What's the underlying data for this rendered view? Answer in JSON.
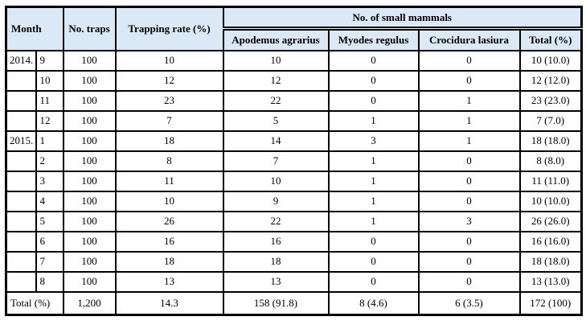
{
  "table": {
    "header": {
      "month": "Month",
      "no_traps": "No. traps",
      "trapping_rate": "Trapping rate (%)",
      "small_mammals_group": "No. of small mammals",
      "species": [
        "Apodemus agrarius",
        "Myodes regulus",
        "Crocidura lasiura",
        "Total (%)"
      ]
    },
    "rows": [
      {
        "year": "2014.",
        "month": "9",
        "traps": "100",
        "rate": "10",
        "apodemus": "10",
        "myodes": "0",
        "crocidura": "0",
        "total": "10 (10.0)"
      },
      {
        "year": "",
        "month": "10",
        "traps": "100",
        "rate": "12",
        "apodemus": "12",
        "myodes": "0",
        "crocidura": "0",
        "total": "12 (12.0)"
      },
      {
        "year": "",
        "month": "11",
        "traps": "100",
        "rate": "23",
        "apodemus": "22",
        "myodes": "0",
        "crocidura": "1",
        "total": "23 (23.0)"
      },
      {
        "year": "",
        "month": "12",
        "traps": "100",
        "rate": "7",
        "apodemus": "5",
        "myodes": "1",
        "crocidura": "1",
        "total": "7 (7.0)"
      },
      {
        "year": "2015.",
        "month": "1",
        "traps": "100",
        "rate": "18",
        "apodemus": "14",
        "myodes": "3",
        "crocidura": "1",
        "total": "18 (18.0)"
      },
      {
        "year": "",
        "month": "2",
        "traps": "100",
        "rate": "8",
        "apodemus": "7",
        "myodes": "1",
        "crocidura": "0",
        "total": "8 (8.0)"
      },
      {
        "year": "",
        "month": "3",
        "traps": "100",
        "rate": "11",
        "apodemus": "10",
        "myodes": "1",
        "crocidura": "0",
        "total": "11 (11.0)"
      },
      {
        "year": "",
        "month": "4",
        "traps": "100",
        "rate": "10",
        "apodemus": "9",
        "myodes": "1",
        "crocidura": "0",
        "total": "10 (10.0)"
      },
      {
        "year": "",
        "month": "5",
        "traps": "100",
        "rate": "26",
        "apodemus": "22",
        "myodes": "1",
        "crocidura": "3",
        "total": "26 (26.0)"
      },
      {
        "year": "",
        "month": "6",
        "traps": "100",
        "rate": "16",
        "apodemus": "16",
        "myodes": "0",
        "crocidura": "0",
        "total": "16 (16.0)"
      },
      {
        "year": "",
        "month": "7",
        "traps": "100",
        "rate": "18",
        "apodemus": "18",
        "myodes": "0",
        "crocidura": "0",
        "total": "18 (18.0)"
      },
      {
        "year": "",
        "month": "8",
        "traps": "100",
        "rate": "13",
        "apodemus": "13",
        "myodes": "0",
        "crocidura": "0",
        "total": "13 (13.0)"
      }
    ],
    "total_row": {
      "label": "Total (%)",
      "traps": "1,200",
      "rate": "14.3",
      "apodemus": "158 (91.8)",
      "myodes": "8 (4.6)",
      "crocidura": "6 (3.5)",
      "total": "172 (100)"
    }
  },
  "colors": {
    "header_bg": "#dbe9f7",
    "border": "#000000",
    "text": "#000000"
  }
}
